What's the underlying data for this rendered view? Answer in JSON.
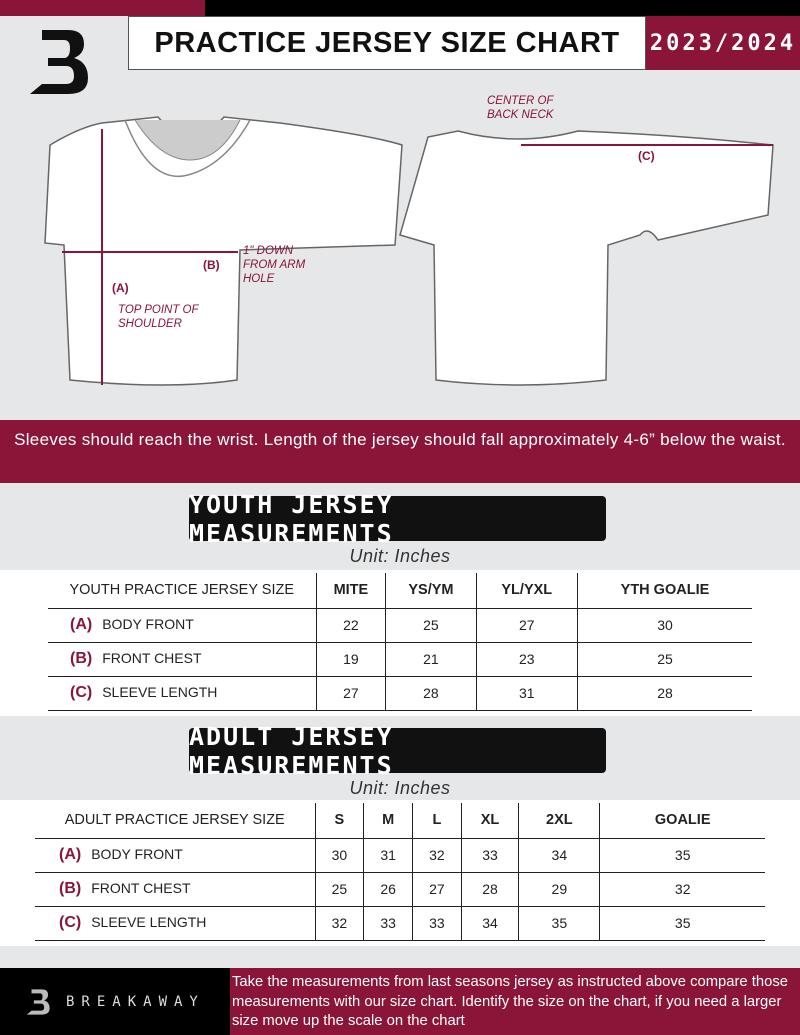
{
  "header": {
    "title": "PRACTICE JERSEY SIZE CHART",
    "season": "2023/2024"
  },
  "colors": {
    "accent": "#8a1538",
    "dark": "#111111",
    "background": "#e6e7e8"
  },
  "diagram": {
    "label_a": "(A)",
    "label_a_note": "TOP POINT OF SHOULDER",
    "label_b": "(B)",
    "label_b_note": "1\" DOWN FROM ARM HOLE",
    "label_c": "(C)",
    "label_c_note": "CENTER OF BACK NECK"
  },
  "banner": "Sleeves should reach the wrist. Length of the jersey should fall approximately 4-6” below the waist.",
  "youth": {
    "title": "YOUTH JERSEY MEASUREMENTS",
    "unit": "Unit: Inches",
    "header": [
      "YOUTH PRACTICE JERSEY SIZE",
      "MITE",
      "YS/YM",
      "YL/YXL",
      "YTH GOALIE"
    ],
    "rows": [
      {
        "code": "(A)",
        "label": "BODY FRONT",
        "values": [
          "22",
          "25",
          "27",
          "30"
        ]
      },
      {
        "code": "(B)",
        "label": "FRONT CHEST",
        "values": [
          "19",
          "21",
          "23",
          "25"
        ]
      },
      {
        "code": "(C)",
        "label": "SLEEVE LENGTH",
        "values": [
          "27",
          "28",
          "31",
          "28"
        ]
      }
    ]
  },
  "adult": {
    "title": "ADULT JERSEY MEASUREMENTS",
    "unit": "Unit: Inches",
    "header": [
      "ADULT PRACTICE JERSEY SIZE",
      "S",
      "M",
      "L",
      "XL",
      "2XL",
      "GOALIE"
    ],
    "rows": [
      {
        "code": "(A)",
        "label": "BODY FRONT",
        "values": [
          "30",
          "31",
          "32",
          "33",
          "34",
          "35"
        ]
      },
      {
        "code": "(B)",
        "label": "FRONT CHEST",
        "values": [
          "25",
          "26",
          "27",
          "28",
          "29",
          "32"
        ]
      },
      {
        "code": "(C)",
        "label": "SLEEVE LENGTH",
        "values": [
          "32",
          "33",
          "33",
          "34",
          "35",
          "35"
        ]
      }
    ]
  },
  "footer": {
    "brand": "BREAKAWAY",
    "note": "Take the measurements from last seasons jersey as instructed above compare those measurements  with our size chart. Identify the size on the chart, if you need a larger size move up the scale on the chart"
  }
}
